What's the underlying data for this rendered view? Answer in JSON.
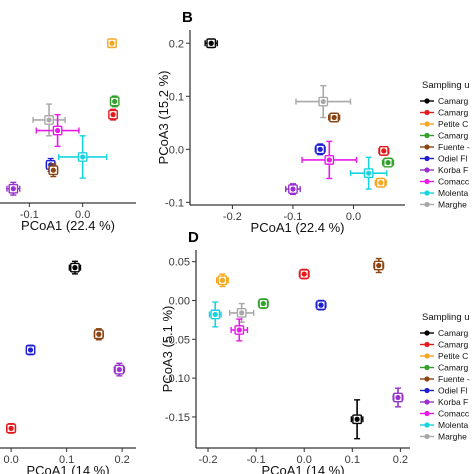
{
  "legend_title": "Sampling u",
  "group_colors": {
    "camargue_a": "#000000",
    "camargue_b": "#e31a1c",
    "petite": "#f5a623",
    "camargue_c": "#33a02c",
    "fuente": "#8b4513",
    "odiel": "#1f1fd1",
    "korba": "#9932cc",
    "comacchio": "#e81ae8",
    "molentargius": "#17d3e0",
    "margherita": "#a8a8a8"
  },
  "chart_data": [
    {
      "panel": "A",
      "type": "scatter",
      "panel_label": "",
      "xlabel": "PCoA1 (22.4 %)",
      "ylabel": "",
      "xlim": [
        -0.155,
        0.1
      ],
      "ylim": [
        -0.102,
        0.225
      ],
      "xticks": [
        -0.1,
        0.0
      ],
      "xtick_labels": [
        "-0.1",
        "0.0"
      ],
      "yticks": [],
      "ytick_labels": [],
      "points": [
        {
          "group": "petite",
          "x": 0.055,
          "y": 0.2,
          "xerr": 0.007,
          "yerr": 0.008
        },
        {
          "group": "camargue_c",
          "x": 0.06,
          "y": 0.09,
          "xerr": 0.007,
          "yerr": 0.01
        },
        {
          "group": "camargue_b",
          "x": 0.057,
          "y": 0.065,
          "xerr": 0.006,
          "yerr": 0.01
        },
        {
          "group": "margherita",
          "x": -0.063,
          "y": 0.055,
          "xerr": 0.03,
          "yerr": 0.03
        },
        {
          "group": "comacchio",
          "x": -0.047,
          "y": 0.035,
          "xerr": 0.04,
          "yerr": 0.03
        },
        {
          "group": "molentargius",
          "x": 0.0,
          "y": -0.015,
          "xerr": 0.045,
          "yerr": 0.04
        },
        {
          "group": "odiel",
          "x": -0.06,
          "y": -0.03,
          "xerr": 0.008,
          "yerr": 0.012
        },
        {
          "group": "fuente",
          "x": -0.055,
          "y": -0.04,
          "xerr": 0.008,
          "yerr": 0.012
        },
        {
          "group": "korba",
          "x": -0.13,
          "y": -0.075,
          "xerr": 0.012,
          "yerr": 0.012
        }
      ]
    },
    {
      "panel": "B",
      "type": "scatter",
      "panel_label": "B",
      "xlabel": "PCoA1 (22.4 %)",
      "ylabel": "PCoA3 (15.2 %)",
      "xlim": [
        -0.27,
        0.085
      ],
      "ylim": [
        -0.105,
        0.225
      ],
      "xticks": [
        -0.2,
        -0.1,
        0.0
      ],
      "xtick_labels": [
        "-0.2",
        "-0.1",
        "0.0"
      ],
      "yticks": [
        -0.1,
        0.0,
        0.1,
        0.2
      ],
      "ytick_labels": [
        "-0.1",
        "0.0",
        "0.1",
        "0.2"
      ],
      "points": [
        {
          "group": "camargue_a",
          "x": -0.235,
          "y": 0.2,
          "xerr": 0.01,
          "yerr": 0.008
        },
        {
          "group": "margherita",
          "x": -0.05,
          "y": 0.09,
          "xerr": 0.045,
          "yerr": 0.03
        },
        {
          "group": "fuente",
          "x": -0.032,
          "y": 0.06,
          "xerr": 0.009,
          "yerr": 0.008
        },
        {
          "group": "odiel",
          "x": -0.055,
          "y": 0.0,
          "xerr": 0.008,
          "yerr": 0.01
        },
        {
          "group": "camargue_b",
          "x": 0.05,
          "y": -0.003,
          "xerr": 0.008,
          "yerr": 0.008
        },
        {
          "group": "comacchio",
          "x": -0.04,
          "y": -0.02,
          "xerr": 0.045,
          "yerr": 0.035
        },
        {
          "group": "camargue_c",
          "x": 0.057,
          "y": -0.025,
          "xerr": 0.009,
          "yerr": 0.008
        },
        {
          "group": "molentargius",
          "x": 0.025,
          "y": -0.045,
          "xerr": 0.03,
          "yerr": 0.03
        },
        {
          "group": "petite",
          "x": 0.045,
          "y": -0.063,
          "xerr": 0.009,
          "yerr": 0.008
        },
        {
          "group": "korba",
          "x": -0.1,
          "y": -0.075,
          "xerr": 0.012,
          "yerr": 0.01
        }
      ]
    },
    {
      "panel": "C",
      "type": "scatter",
      "panel_label": "",
      "xlabel": "PCoA1 (14 %)",
      "ylabel": "",
      "xlim": [
        -0.02,
        0.225
      ],
      "ylim": [
        -0.185,
        0.07
      ],
      "xticks": [
        0.0,
        0.1,
        0.2
      ],
      "xtick_labels": [
        "0.0",
        "0.1",
        "0.2"
      ],
      "yticks": [],
      "ytick_labels": [],
      "points": [
        {
          "group": "camargue_a",
          "x": 0.115,
          "y": 0.045,
          "xerr": 0.01,
          "yerr": 0.008
        },
        {
          "group": "fuente",
          "x": 0.158,
          "y": -0.04,
          "xerr": 0.008,
          "yerr": 0.007
        },
        {
          "group": "odiel",
          "x": 0.035,
          "y": -0.06,
          "xerr": 0.007,
          "yerr": 0.006
        },
        {
          "group": "korba",
          "x": 0.195,
          "y": -0.085,
          "xerr": 0.009,
          "yerr": 0.008
        },
        {
          "group": "camargue_b",
          "x": 0.0,
          "y": -0.16,
          "xerr": 0.008,
          "yerr": 0.006
        }
      ]
    },
    {
      "panel": "D",
      "type": "scatter",
      "panel_label": "D",
      "xlabel": "PCoA1 (14 %)",
      "ylabel": "PCoA3 (5.1 %)",
      "xlim": [
        -0.225,
        0.22
      ],
      "ylim": [
        -0.19,
        0.065
      ],
      "xticks": [
        -0.2,
        -0.1,
        0.0,
        0.1,
        0.2
      ],
      "xtick_labels": [
        "-0.2",
        "-0.1",
        "0.0",
        "0.1",
        "0.2"
      ],
      "yticks": [
        -0.15,
        -0.1,
        -0.05,
        0.0,
        0.05
      ],
      "ytick_labels": [
        "-0.15",
        "-0.10",
        "-0.05",
        "0.00",
        "0.05"
      ],
      "points": [
        {
          "group": "petite",
          "x": -0.17,
          "y": 0.026,
          "xerr": 0.012,
          "yerr": 0.008
        },
        {
          "group": "camargue_b",
          "x": 0.0,
          "y": 0.034,
          "xerr": 0.01,
          "yerr": 0.006
        },
        {
          "group": "fuente",
          "x": 0.155,
          "y": 0.045,
          "xerr": 0.01,
          "yerr": 0.009
        },
        {
          "group": "camargue_c",
          "x": -0.085,
          "y": -0.004,
          "xerr": 0.01,
          "yerr": 0.006
        },
        {
          "group": "odiel",
          "x": 0.035,
          "y": -0.006,
          "xerr": 0.01,
          "yerr": 0.006
        },
        {
          "group": "margherita",
          "x": -0.13,
          "y": -0.016,
          "xerr": 0.025,
          "yerr": 0.012
        },
        {
          "group": "molentargius",
          "x": -0.185,
          "y": -0.018,
          "xerr": 0.012,
          "yerr": 0.016
        },
        {
          "group": "comacchio",
          "x": -0.135,
          "y": -0.038,
          "xerr": 0.017,
          "yerr": 0.014
        },
        {
          "group": "korba",
          "x": 0.195,
          "y": -0.125,
          "xerr": 0.01,
          "yerr": 0.012
        },
        {
          "group": "camargue_a",
          "x": 0.11,
          "y": -0.153,
          "xerr": 0.012,
          "yerr": 0.025
        }
      ]
    }
  ],
  "legends": [
    {
      "title": "Sampling u",
      "items": [
        {
          "group": "camargue_a",
          "label": "Camarg"
        },
        {
          "group": "camargue_b",
          "label": "Camarg"
        },
        {
          "group": "petite",
          "label": "Petite C"
        },
        {
          "group": "camargue_c",
          "label": "Camarg"
        },
        {
          "group": "fuente",
          "label": "Fuente -"
        },
        {
          "group": "odiel",
          "label": "Odiel Fl"
        },
        {
          "group": "korba",
          "label": "Korba F"
        },
        {
          "group": "comacchio",
          "label": "Comacc"
        },
        {
          "group": "molentargius",
          "label": "Molenta"
        },
        {
          "group": "margherita",
          "label": "Marghe"
        }
      ]
    },
    {
      "title": "Sampling u",
      "items": [
        {
          "group": "camargue_a",
          "label": "Camarg"
        },
        {
          "group": "camargue_b",
          "label": "Camarg"
        },
        {
          "group": "petite",
          "label": "Petite C"
        },
        {
          "group": "camargue_c",
          "label": "Camarg"
        },
        {
          "group": "fuente",
          "label": "Fuente -"
        },
        {
          "group": "odiel",
          "label": "Odiel Fl"
        },
        {
          "group": "korba",
          "label": "Korba F"
        },
        {
          "group": "comacchio",
          "label": "Comacc"
        },
        {
          "group": "molentargius",
          "label": "Molenta"
        },
        {
          "group": "margherita",
          "label": "Marghe"
        }
      ]
    }
  ]
}
